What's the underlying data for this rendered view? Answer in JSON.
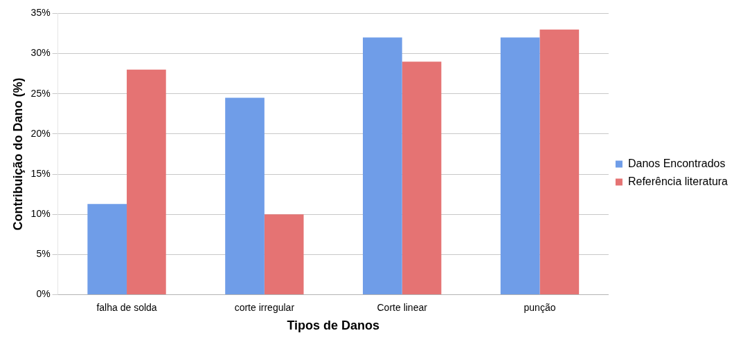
{
  "chart_data": {
    "type": "bar",
    "xlabel": "Tipos de Danos",
    "ylabel": "Contribuição do Dano (%)",
    "categories": [
      "falha de solda",
      "corte irregular",
      "Corte linear",
      "punção"
    ],
    "series": [
      {
        "name": "Danos Encontrados",
        "color": "#6f9de8",
        "values": [
          11.3,
          24.5,
          32,
          32
        ]
      },
      {
        "name": "Referência literatura",
        "color": "#e57373",
        "values": [
          28,
          10,
          29,
          33
        ]
      }
    ],
    "ylim": [
      0,
      35
    ],
    "yticks": [
      {
        "value": 0,
        "label": "0%"
      },
      {
        "value": 5,
        "label": "5%"
      },
      {
        "value": 10,
        "label": "10%"
      },
      {
        "value": 15,
        "label": "15%"
      },
      {
        "value": 20,
        "label": "20%"
      },
      {
        "value": 25,
        "label": "25%"
      },
      {
        "value": 30,
        "label": "30%"
      },
      {
        "value": 35,
        "label": "35%"
      }
    ],
    "grid": "y",
    "legend": "right"
  }
}
